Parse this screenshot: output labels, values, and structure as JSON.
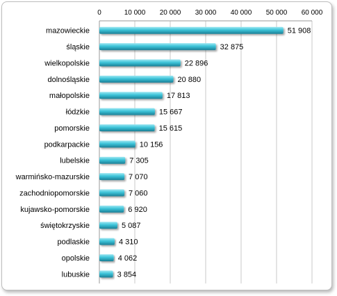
{
  "chart_data": {
    "type": "bar",
    "orientation": "horizontal",
    "title": "",
    "xlabel": "",
    "ylabel": "",
    "xlim": [
      0,
      60000
    ],
    "x_ticks": [
      0,
      10000,
      20000,
      30000,
      40000,
      50000,
      60000
    ],
    "x_tick_labels": [
      "0",
      "10 000",
      "20 000",
      "30 000",
      "40 000",
      "50 000",
      "60 000"
    ],
    "axis_position": "top",
    "grid": "vertical",
    "legend": "none",
    "bar_color": "#3cc3d8",
    "categories": [
      "mazowieckie",
      "śląskie",
      "wielkopolskie",
      "dolnośląskie",
      "małopolskie",
      "łódzkie",
      "pomorskie",
      "podkarpackie",
      "lubelskie",
      "warmińsko-mazurskie",
      "zachodniopomorskie",
      "kujawsko-pomorskie",
      "świętokrzyskie",
      "podlaskie",
      "opolskie",
      "lubuskie"
    ],
    "values": [
      51908,
      32875,
      22896,
      20880,
      17813,
      15667,
      15615,
      10156,
      7305,
      7070,
      7060,
      6920,
      5087,
      4310,
      4062,
      3854
    ],
    "value_labels": [
      "51 908",
      "32 875",
      "22 896",
      "20 880",
      "17 813",
      "15 667",
      "15 615",
      "10 156",
      "7 305",
      "7 070",
      "7 060",
      "6 920",
      "5 087",
      "4 310",
      "4 062",
      "3 854"
    ]
  }
}
